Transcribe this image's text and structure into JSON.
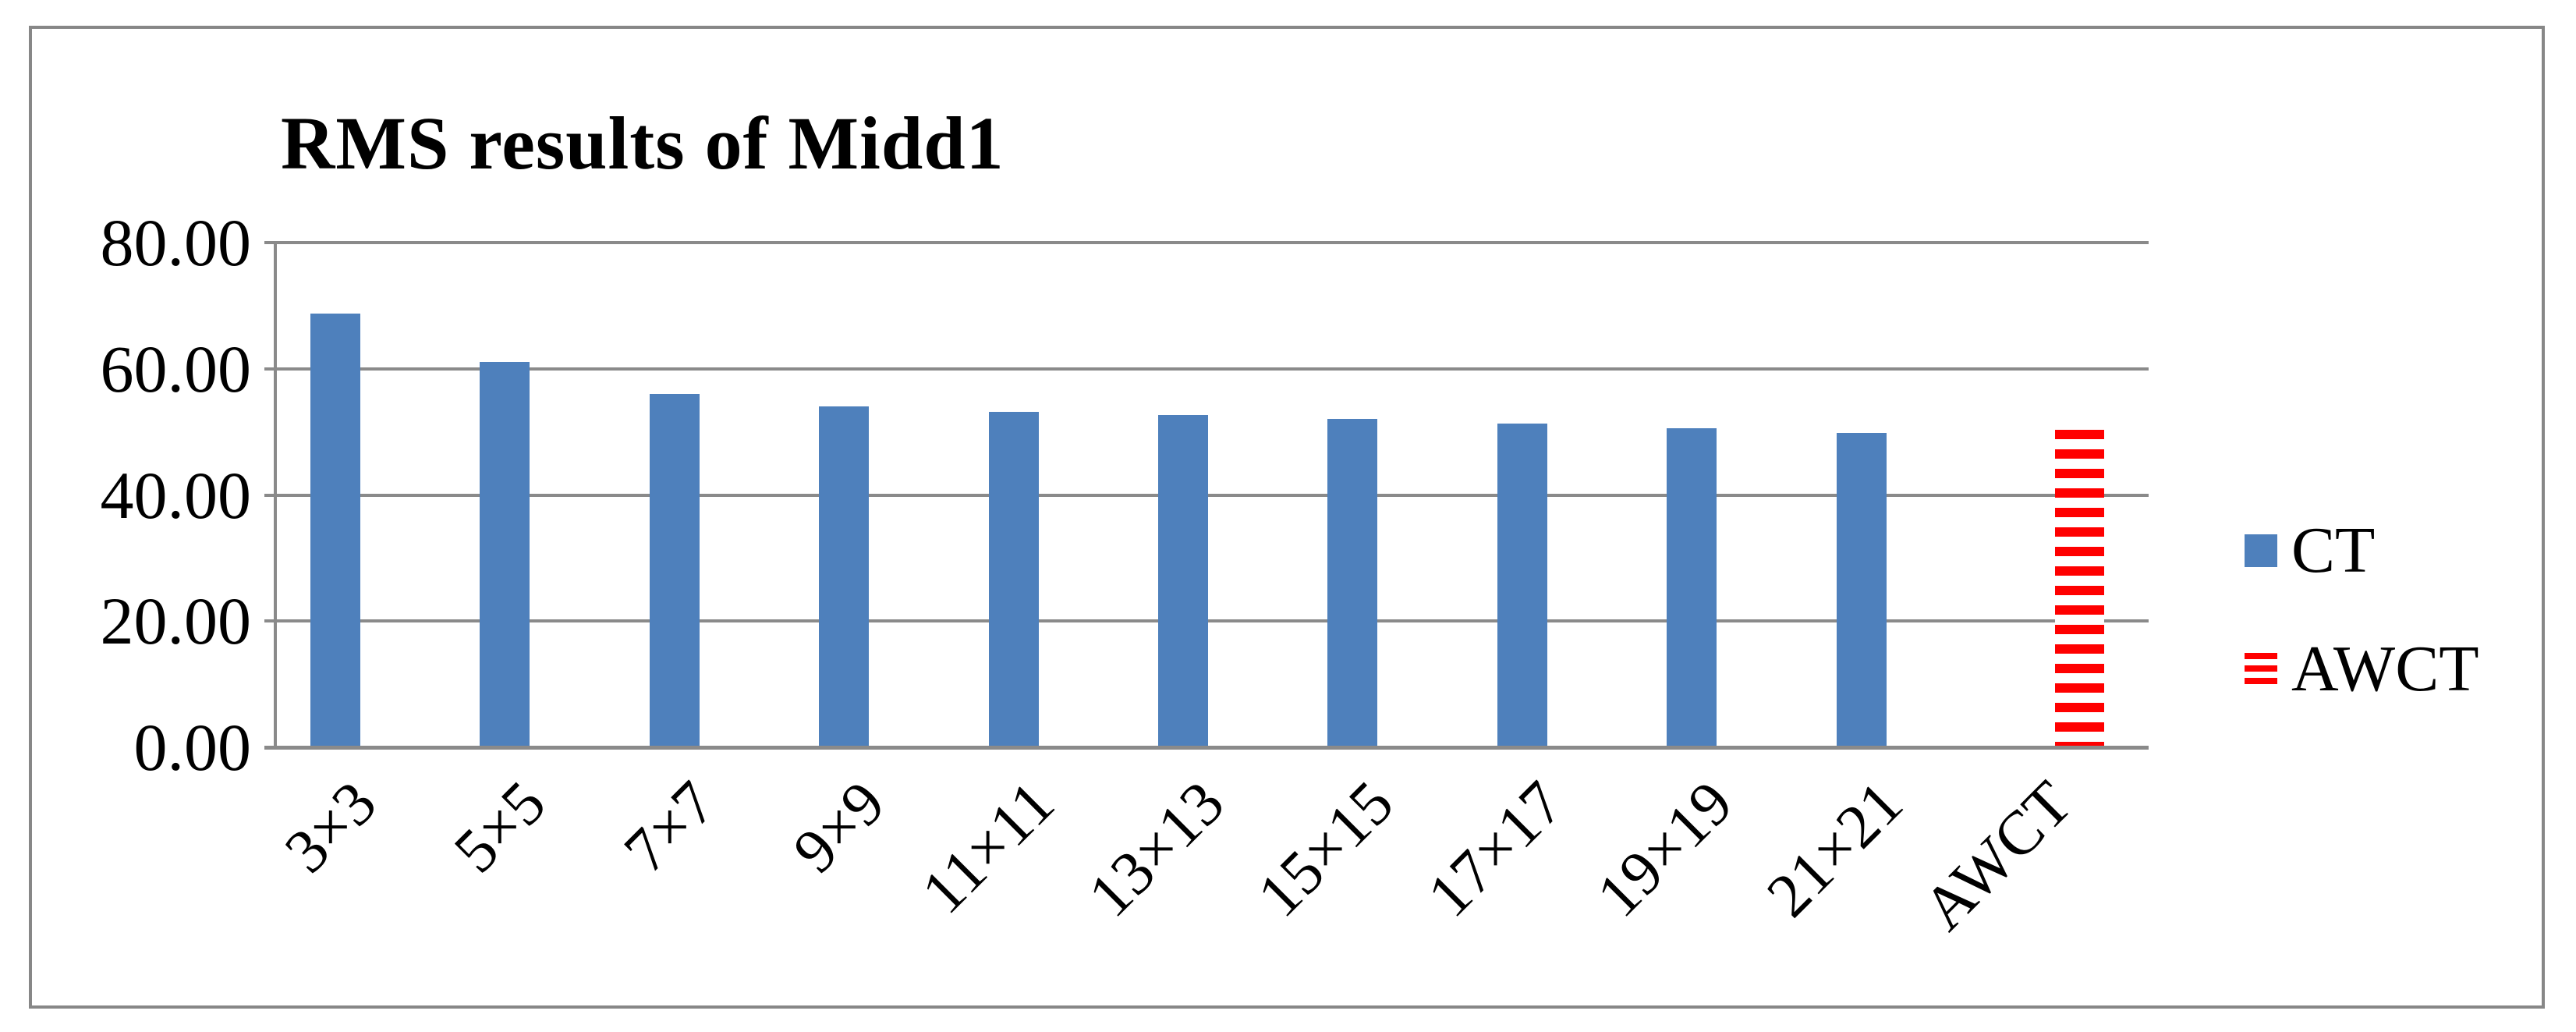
{
  "figure": {
    "title": "RMS results of Midd1"
  },
  "chart_data": {
    "type": "bar",
    "title": "RMS results of Midd1",
    "categories": [
      "3×3",
      "5×5",
      "7×7",
      "9×9",
      "11×11",
      "13×13",
      "15×15",
      "17×17",
      "19×19",
      "21×21",
      "AWCT"
    ],
    "series": [
      {
        "name": "CT",
        "style": "solid",
        "color": "#4E80BC",
        "values": [
          68.7,
          61.1,
          56.0,
          54.0,
          53.2,
          52.7,
          52.1,
          51.3,
          50.6,
          49.8,
          null
        ]
      },
      {
        "name": "AWCT",
        "style": "horizontal-stripes",
        "color": "#FF0000",
        "values": [
          null,
          null,
          null,
          null,
          null,
          null,
          null,
          null,
          null,
          null,
          50.3
        ]
      }
    ],
    "xlabel": "",
    "ylabel": "",
    "ylim": [
      0,
      80
    ],
    "yticks": [
      {
        "value": 80,
        "label": "80.00"
      },
      {
        "value": 60,
        "label": "60.00"
      },
      {
        "value": 40,
        "label": "40.00"
      },
      {
        "value": 20,
        "label": "20.00"
      },
      {
        "value": 0,
        "label": "0.00"
      }
    ],
    "grid": true,
    "x_label_rotation_deg": 45,
    "legend_position": "right",
    "legend": [
      {
        "label": "CT",
        "swatch": "solid-blue"
      },
      {
        "label": "AWCT",
        "swatch": "striped-red"
      }
    ],
    "colors": {
      "grid": "#8A8A8A",
      "figure_border": "#878787",
      "bar_blue": "#4E80BC",
      "bar_red": "#FF0000",
      "text": "#000000"
    }
  }
}
